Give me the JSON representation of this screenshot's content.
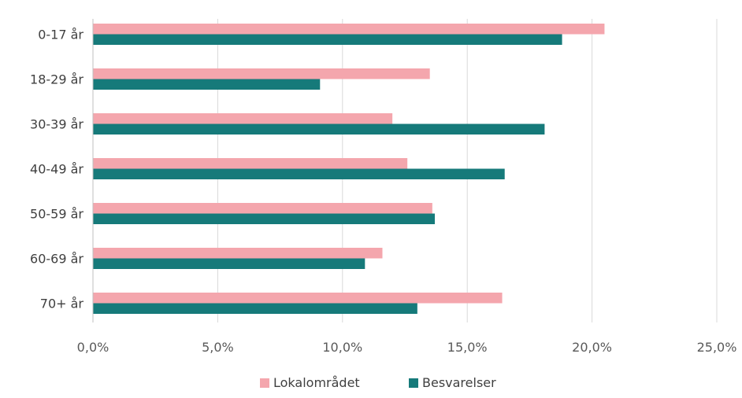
{
  "chart_data": {
    "type": "bar",
    "orientation": "horizontal",
    "categories": [
      "0-17 år",
      "18-29 år",
      "30-39 år",
      "40-49 år",
      "50-59 år",
      "60-69 år",
      "70+ år"
    ],
    "series": [
      {
        "name": "Lokalområdet",
        "color": "#f4a6ad",
        "values": [
          20.5,
          13.5,
          12.0,
          12.6,
          13.6,
          11.6,
          16.4
        ]
      },
      {
        "name": "Besvarelser",
        "color": "#167a7a",
        "values": [
          18.8,
          9.1,
          18.1,
          16.5,
          13.7,
          10.9,
          13.0
        ]
      }
    ],
    "x_ticks": [
      "0,0%",
      "5,0%",
      "10,0%",
      "15,0%",
      "20,0%",
      "25,0%"
    ],
    "xlim": [
      0,
      25
    ],
    "x_tick_values": [
      0,
      5,
      10,
      15,
      20,
      25
    ],
    "grid": "vertical",
    "legend_position": "bottom",
    "title": "",
    "xlabel": "",
    "ylabel": ""
  }
}
